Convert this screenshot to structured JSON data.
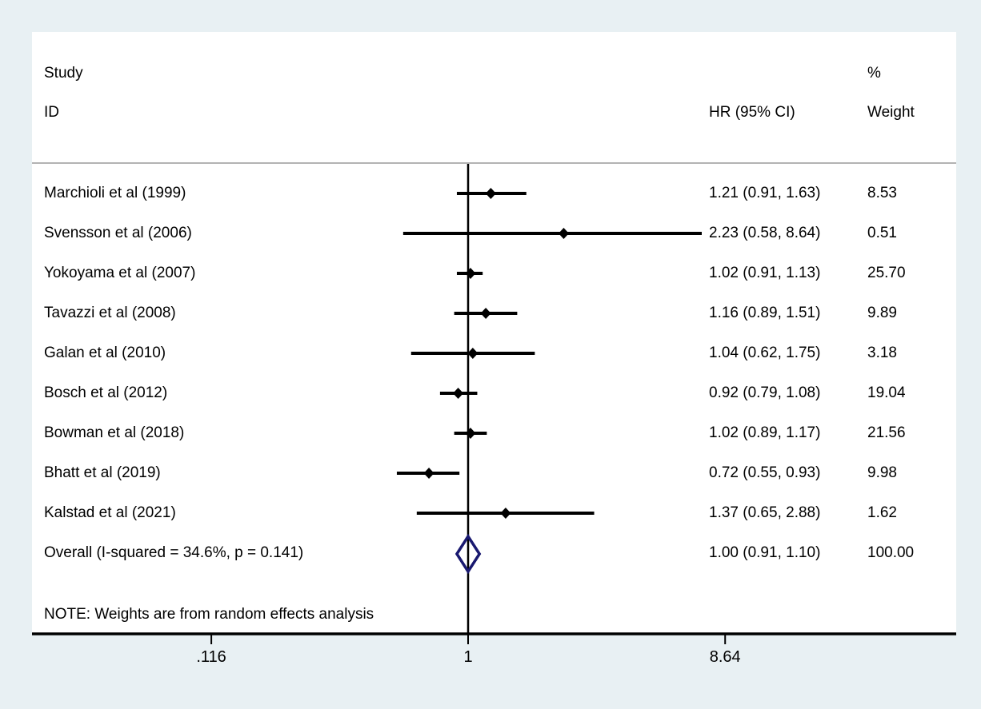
{
  "chart_data": {
    "type": "forest",
    "description": "Forest plot of hazard ratios, random effects meta-analysis",
    "x_scale": "log",
    "x_range": [
      0.116,
      8.64
    ],
    "null_line_value": 1,
    "grid": false,
    "header": {
      "study_line1": "Study",
      "study_line2": "ID",
      "effect": "HR (95% CI)",
      "weight_line1": "%",
      "weight_line2": "Weight"
    },
    "studies": [
      {
        "label": "Marchioli et al (1999)",
        "hr": 1.21,
        "lo": 0.91,
        "hi": 1.63,
        "effect_text": "1.21 (0.91, 1.63)",
        "weight": "8.53"
      },
      {
        "label": "Svensson et al (2006)",
        "hr": 2.23,
        "lo": 0.58,
        "hi": 8.64,
        "effect_text": "2.23 (0.58, 8.64)",
        "weight": "0.51"
      },
      {
        "label": "Yokoyama et al (2007)",
        "hr": 1.02,
        "lo": 0.91,
        "hi": 1.13,
        "effect_text": "1.02 (0.91, 1.13)",
        "weight": "25.70"
      },
      {
        "label": "Tavazzi et al (2008)",
        "hr": 1.16,
        "lo": 0.89,
        "hi": 1.51,
        "effect_text": "1.16 (0.89, 1.51)",
        "weight": "9.89"
      },
      {
        "label": "Galan et al (2010)",
        "hr": 1.04,
        "lo": 0.62,
        "hi": 1.75,
        "effect_text": "1.04 (0.62, 1.75)",
        "weight": "3.18"
      },
      {
        "label": "Bosch et al (2012)",
        "hr": 0.92,
        "lo": 0.79,
        "hi": 1.08,
        "effect_text": "0.92 (0.79, 1.08)",
        "weight": "19.04"
      },
      {
        "label": "Bowman et al (2018)",
        "hr": 1.02,
        "lo": 0.89,
        "hi": 1.17,
        "effect_text": "1.02 (0.89, 1.17)",
        "weight": "21.56"
      },
      {
        "label": "Bhatt et al (2019)",
        "hr": 0.72,
        "lo": 0.55,
        "hi": 0.93,
        "effect_text": "0.72 (0.55, 0.93)",
        "weight": "9.98"
      },
      {
        "label": "Kalstad et al (2021)",
        "hr": 1.37,
        "lo": 0.65,
        "hi": 2.88,
        "effect_text": "1.37 (0.65, 2.88)",
        "weight": "1.62"
      }
    ],
    "overall": {
      "label": "Overall  (I-squared = 34.6%, p = 0.141)",
      "hr": 1.0,
      "lo": 0.91,
      "hi": 1.1,
      "effect_text": "1.00 (0.91, 1.10)",
      "weight": "100.00"
    },
    "note": "NOTE: Weights are from random effects analysis",
    "x_ticks": [
      {
        "value": 0.116,
        "label": ".116"
      },
      {
        "value": 1,
        "label": "1"
      },
      {
        "value": 8.64,
        "label": "8.64"
      }
    ],
    "colors": {
      "background": "#e8f0f3",
      "plot_background": "#ffffff",
      "line": "#000000",
      "marker": "#000000",
      "overall_diamond": "#191970",
      "header_separator": "#b3b3b3"
    }
  }
}
